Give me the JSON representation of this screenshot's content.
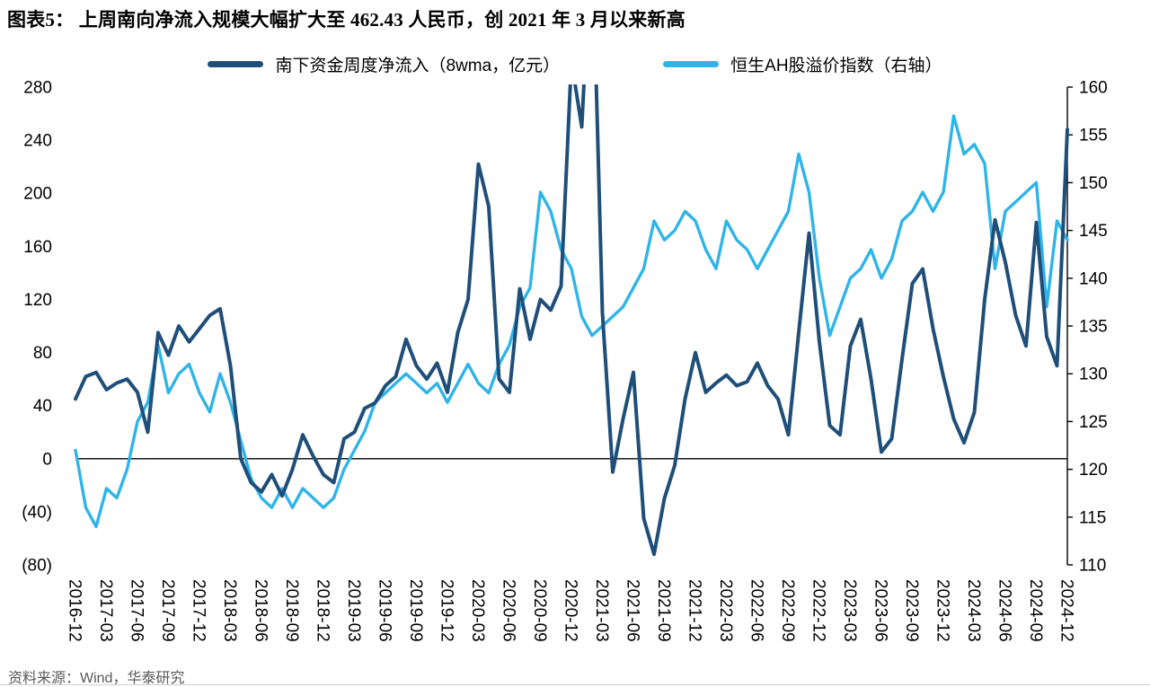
{
  "title": "图表5：  上周南向净流入规模大幅扩大至 462.43 人民币，创 2021 年 3 月以来新高",
  "source": "资料来源：Wind，华泰研究",
  "colors": {
    "primary": "#1f4e79",
    "secondary": "#2fb4e9",
    "axis": "#000000",
    "source_text": "#595959"
  },
  "chart_data": {
    "type": "line",
    "title": "上周南向净流入规模大幅扩大至 462.43 人民币，创 2021 年 3 月以来新高",
    "grid": false,
    "legend_position": "top",
    "points_per_tick": 3,
    "x_tick_labels": [
      "2016-12",
      "2017-03",
      "2017-06",
      "2017-09",
      "2017-12",
      "2018-03",
      "2018-06",
      "2018-09",
      "2018-12",
      "2019-03",
      "2019-06",
      "2019-09",
      "2019-12",
      "2020-03",
      "2020-06",
      "2020-09",
      "2020-12",
      "2021-03",
      "2021-06",
      "2021-09",
      "2021-12",
      "2022-03",
      "2022-06",
      "2022-09",
      "2022-12",
      "2023-03",
      "2023-06",
      "2023-09",
      "2023-12",
      "2024-03",
      "2024-06",
      "2024-09",
      "2024-12"
    ],
    "left_axis": {
      "min": -80,
      "max": 280,
      "tick_labels": [
        "280",
        "240",
        "200",
        "160",
        "120",
        "80",
        "40",
        "0",
        "(40)",
        "(80)"
      ]
    },
    "right_axis": {
      "min": 110,
      "max": 160,
      "tick_labels": [
        "160",
        "155",
        "150",
        "145",
        "140",
        "135",
        "130",
        "125",
        "120",
        "115",
        "110"
      ]
    },
    "zero_line": 0,
    "series": [
      {
        "name": "南下资金周度净流入（8wma，亿元）",
        "axis": "left",
        "color_key": "primary",
        "values": [
          45,
          62,
          65,
          52,
          57,
          60,
          50,
          20,
          95,
          78,
          100,
          88,
          98,
          108,
          113,
          70,
          0,
          -18,
          -25,
          -12,
          -28,
          -8,
          18,
          2,
          -12,
          -18,
          15,
          20,
          38,
          42,
          55,
          62,
          90,
          70,
          60,
          72,
          50,
          95,
          120,
          222,
          190,
          60,
          50,
          128,
          90,
          120,
          112,
          130,
          300,
          250,
          400,
          110,
          -10,
          30,
          65,
          -45,
          -72,
          -30,
          -5,
          45,
          80,
          50,
          57,
          63,
          55,
          58,
          72,
          55,
          45,
          18,
          95,
          170,
          88,
          25,
          18,
          85,
          105,
          60,
          5,
          15,
          75,
          132,
          143,
          98,
          62,
          30,
          12,
          35,
          120,
          180,
          148,
          108,
          85,
          178,
          92,
          70,
          248
        ]
      },
      {
        "name": "恒生AH股溢价指数（右轴）",
        "axis": "right",
        "color_key": "secondary",
        "values": [
          122,
          116,
          114,
          118,
          117,
          120,
          125,
          127,
          133,
          128,
          130,
          131,
          128,
          126,
          130,
          127,
          123,
          119,
          117,
          116,
          118,
          116,
          118,
          117,
          116,
          117,
          120,
          122,
          124,
          127,
          128,
          129,
          130,
          129,
          128,
          129,
          127,
          129,
          131,
          129,
          128,
          131,
          133,
          137,
          139,
          149,
          147,
          143,
          141,
          136,
          134,
          135,
          136,
          137,
          139,
          141,
          146,
          144,
          145,
          147,
          146,
          143,
          141,
          146,
          144,
          143,
          141,
          143,
          145,
          147,
          153,
          149,
          140,
          134,
          137,
          140,
          141,
          143,
          140,
          142,
          146,
          147,
          149,
          147,
          149,
          157,
          153,
          154,
          152,
          141,
          147,
          148,
          149,
          150,
          137,
          146,
          144
        ]
      }
    ]
  }
}
